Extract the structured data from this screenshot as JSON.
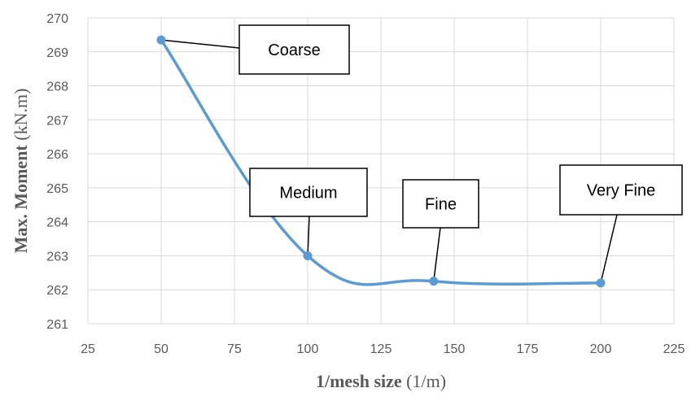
{
  "chart_data": {
    "type": "scatter",
    "title": "",
    "xlabel": "1/mesh size",
    "xlabel_unit": "(1/m)",
    "ylabel": "Max. Moment",
    "ylabel_unit": "(kN.m)",
    "xlim": [
      25,
      225
    ],
    "ylim": [
      261,
      270
    ],
    "xticks": [
      25,
      50,
      75,
      100,
      125,
      150,
      175,
      200,
      225
    ],
    "yticks": [
      261,
      262,
      263,
      264,
      265,
      266,
      267,
      268,
      269,
      270
    ],
    "grid": true,
    "smooth_line": true,
    "series": [
      {
        "x": [
          50,
          100,
          143,
          200
        ],
        "y": [
          269.35,
          263.0,
          262.25,
          262.2
        ]
      }
    ],
    "annotations": [
      {
        "label": "Coarse",
        "x": 50,
        "y": 269.35
      },
      {
        "label": "Medium",
        "x": 100,
        "y": 263.0
      },
      {
        "label": "Fine",
        "x": 143,
        "y": 262.25
      },
      {
        "label": "Very Fine",
        "x": 200,
        "y": 262.2
      }
    ],
    "colors": {
      "series": "#5b9bd5",
      "grid": "#d9d9d9",
      "text": "#595959"
    }
  }
}
